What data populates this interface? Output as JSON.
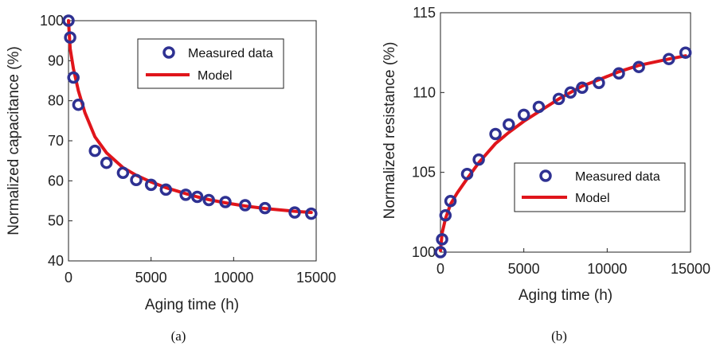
{
  "chart_data": [
    {
      "type": "scatter",
      "panel_label": "(a)",
      "xlabel": "Aging time (h)",
      "ylabel": "Normalized capacitance (%)",
      "xlim": [
        0,
        15000
      ],
      "ylim": [
        40,
        100
      ],
      "xticks": [
        0,
        5000,
        10000,
        15000
      ],
      "yticks": [
        40,
        50,
        60,
        70,
        80,
        90,
        100
      ],
      "xtick_labels": [
        "0",
        "5000",
        "10000",
        "15000"
      ],
      "ytick_labels": [
        "40",
        "50",
        "60",
        "70",
        "80",
        "90",
        "100"
      ],
      "grid": false,
      "legend_position": "top-right",
      "series": [
        {
          "name": "Measured data",
          "type": "scatter",
          "color": "#2e3192",
          "x": [
            0,
            100,
            300,
            600,
            1600,
            2300,
            3300,
            4100,
            5000,
            5900,
            7100,
            7800,
            8500,
            9500,
            10700,
            11900,
            13700,
            14700
          ],
          "y": [
            100,
            95.8,
            85.8,
            79,
            67.5,
            64.5,
            62,
            60.2,
            59,
            57.8,
            56.5,
            56,
            55.2,
            54.7,
            53.9,
            53.2,
            52.1,
            51.8
          ]
        },
        {
          "name": "Model",
          "type": "line",
          "color": "#e0151b",
          "x": [
            0,
            100,
            300,
            600,
            1000,
            1600,
            2300,
            3300,
            4100,
            5000,
            5900,
            7100,
            7800,
            8500,
            9500,
            10700,
            11900,
            13700,
            14700
          ],
          "y": [
            100,
            93,
            88,
            82.5,
            77,
            71,
            67,
            63.3,
            61.4,
            59.7,
            58.3,
            56.8,
            56,
            55.3,
            54.5,
            53.7,
            53.1,
            52.4,
            52.1
          ]
        }
      ]
    },
    {
      "type": "scatter",
      "panel_label": "(b)",
      "xlabel": "Aging time (h)",
      "ylabel": "Normalized resistance (%)",
      "xlim": [
        0,
        15000
      ],
      "ylim": [
        100,
        115
      ],
      "xticks": [
        0,
        5000,
        10000,
        15000
      ],
      "yticks": [
        100,
        105,
        110,
        115
      ],
      "xtick_labels": [
        "0",
        "5000",
        "10000",
        "15000"
      ],
      "ytick_labels": [
        "100",
        "105",
        "110",
        "115"
      ],
      "grid": false,
      "legend_position": "bottom-right",
      "series": [
        {
          "name": "Measured data",
          "type": "scatter",
          "color": "#2e3192",
          "x": [
            0,
            100,
            300,
            600,
            1600,
            2300,
            3300,
            4100,
            5000,
            5900,
            7100,
            7800,
            8500,
            9500,
            10700,
            11900,
            13700,
            14700
          ],
          "y": [
            100,
            100.8,
            102.3,
            103.2,
            104.9,
            105.8,
            107.4,
            108,
            108.6,
            109.1,
            109.6,
            110,
            110.3,
            110.6,
            111.2,
            111.6,
            112.1,
            112.5
          ]
        },
        {
          "name": "Model",
          "type": "line",
          "color": "#e0151b",
          "x": [
            0,
            100,
            300,
            600,
            1000,
            1600,
            2300,
            3300,
            4100,
            5000,
            5900,
            7100,
            7800,
            8500,
            9500,
            10700,
            11900,
            13700,
            14700
          ],
          "y": [
            100.1,
            101.2,
            102.1,
            103,
            103.7,
            104.6,
            105.6,
            106.8,
            107.5,
            108.2,
            108.8,
            109.6,
            110,
            110.4,
            110.8,
            111.3,
            111.7,
            112.1,
            112.3
          ]
        }
      ]
    }
  ]
}
